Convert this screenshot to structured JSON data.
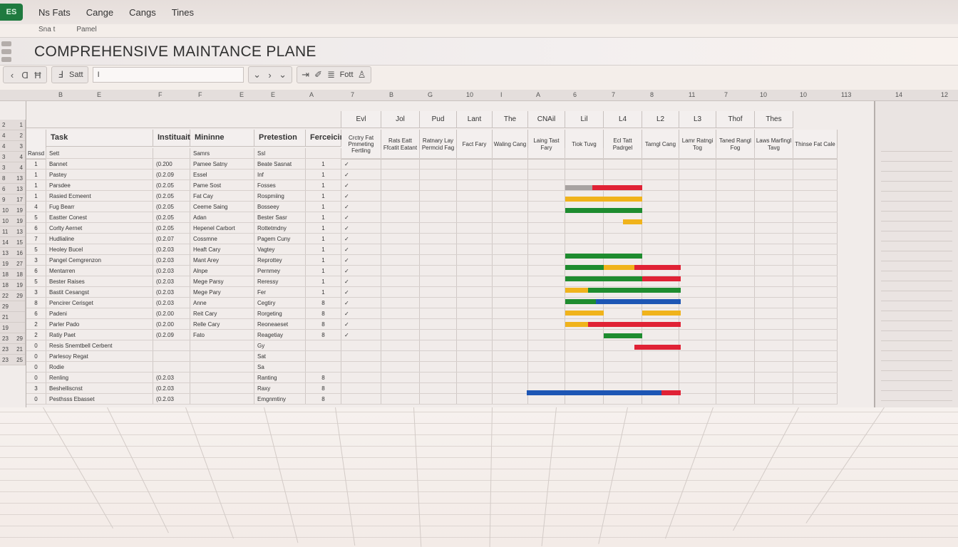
{
  "menubar": {
    "app_badge": "ES",
    "items": [
      "Ns Fats",
      "Cange",
      "Cangs",
      "Tines"
    ],
    "submenu": [
      "Sna t",
      "Pamel"
    ]
  },
  "title": "COMPREHENSIVE MAINTANCE PLANE",
  "toolbar": {
    "group1": [
      "‹",
      "Ɑ",
      "Ħ"
    ],
    "group2": [
      "Ⅎ",
      "Satt"
    ],
    "formula_value": "I",
    "group3": [
      "⇥",
      "✐",
      "≣",
      "Fott",
      "♙"
    ]
  },
  "column_letters": [
    "B",
    "E",
    "F",
    "F",
    "E",
    "E",
    "A",
    "7",
    "B",
    "G",
    "10",
    "I",
    "A",
    "6",
    "7",
    "8",
    "11",
    "7",
    "10",
    "10",
    "113",
    "14",
    "12"
  ],
  "header_top": [
    "Evl",
    "Jol",
    "Pud",
    "Lant",
    "The",
    "CNAil",
    "Lil",
    "L4",
    "L2",
    "L3",
    "Thof",
    "Thes"
  ],
  "header_main": {
    "task": "Task",
    "instructions": "Instituaitens",
    "minimum": "Mininne",
    "protection": "Pretestion",
    "frequency": "Ferceicing",
    "c1": "Crctry Fat Pmmeting Fertling",
    "c2": "Rats Eatt Ffcatit Eatant",
    "c3": "Ratnary Lay Permcid Fag",
    "c4": "Fact Fary",
    "c5": "Waling Cang",
    "c6": "Laing Tast Fary",
    "c7": "Tiok Tuvg",
    "c8": "Ecl Tatt Padrgel",
    "c9": "Tarngl Cang",
    "c10": "Lamr Ratngi Tog",
    "c11": "Taned Rangl Fog",
    "c12": "Laws Marfingl Tavg",
    "c13": "Thinse Fat Cale"
  },
  "row_numbers": [
    [
      "2",
      "1"
    ],
    [
      "4",
      "2"
    ],
    [
      "4",
      "3"
    ],
    [
      "3",
      "4"
    ],
    [
      "3",
      "4"
    ],
    [
      "8",
      "13"
    ],
    [
      "6",
      "13"
    ],
    [
      "9",
      "17"
    ],
    [
      "10",
      "19"
    ],
    [
      "10",
      "19"
    ],
    [
      "11",
      "13"
    ],
    [
      "14",
      "15"
    ],
    [
      "13",
      "16"
    ],
    [
      "19",
      "27"
    ],
    [
      "18",
      "18"
    ],
    [
      "18",
      "19"
    ],
    [
      "22",
      "29"
    ],
    [
      "29",
      ""
    ],
    [
      "21",
      ""
    ],
    [
      "19",
      ""
    ],
    [
      "23",
      "29"
    ],
    [
      "23",
      "21"
    ],
    [
      "23",
      "25"
    ]
  ],
  "rows": [
    {
      "n": "Ransd",
      "task": "Sett",
      "min": "",
      "prot": "Samrs",
      "freq": "Ssl",
      "c": "",
      "chk": ""
    },
    {
      "n": "1",
      "task": "Bannet",
      "min": "(0.200",
      "prot": "Pamee Satny",
      "freq": "Beate Sasnat",
      "c": "1",
      "chk": "✓"
    },
    {
      "n": "1",
      "task": "Pastey",
      "min": "(0.2.09",
      "prot": "Essel",
      "freq": "Inf",
      "c": "1",
      "chk": "✓"
    },
    {
      "n": "1",
      "task": "Parsdee",
      "min": "(0.2.05",
      "prot": "Pame Sost",
      "freq": "Fosses",
      "c": "1",
      "chk": "✓"
    },
    {
      "n": "1",
      "task": "Rasied Ecmeent",
      "min": "(0.2.05",
      "prot": "Fat Cay",
      "freq": "Rospmiing",
      "c": "1",
      "chk": "✓"
    },
    {
      "n": "4",
      "task": "Fug Bearr",
      "min": "(0.2.05",
      "prot": "Ceeme Saing",
      "freq": "Bosseey",
      "c": "1",
      "chk": "✓"
    },
    {
      "n": "5",
      "task": "Eastter Conest",
      "min": "(0.2.05",
      "prot": "Adan",
      "freq": "Bester Sasr",
      "c": "1",
      "chk": "✓"
    },
    {
      "n": "6",
      "task": "Corlty Aernet",
      "min": "(0.2.05",
      "prot": "Hepenel Carbort",
      "freq": "Rottetmdny",
      "c": "1",
      "chk": "✓"
    },
    {
      "n": "7",
      "task": "Hudlialine",
      "min": "(0.2.07",
      "prot": "Cossmne",
      "freq": "Pagem Cuny",
      "c": "1",
      "chk": "✓"
    },
    {
      "n": "5",
      "task": "Heoley Bucel",
      "min": "(0.2.03",
      "prot": "Heaft Cary",
      "freq": "Vagtey",
      "c": "1",
      "chk": "✓"
    },
    {
      "n": "3",
      "task": "Pangel Cemgrenzon",
      "min": "(0.2.03",
      "prot": "Mant Arey",
      "freq": "Reprottey",
      "c": "1",
      "chk": "✓"
    },
    {
      "n": "6",
      "task": "Mentarren",
      "min": "(0.2.03",
      "prot": "Alnpe",
      "freq": "Pernmey",
      "c": "1",
      "chk": "✓"
    },
    {
      "n": "5",
      "task": "Bester Raises",
      "min": "(0.2.03",
      "prot": "Mege Parsy",
      "freq": "Reressy",
      "c": "1",
      "chk": "✓"
    },
    {
      "n": "3",
      "task": "Bastit Cesangst",
      "min": "(0.2.03",
      "prot": "Mege Pary",
      "freq": "Fer",
      "c": "1",
      "chk": "✓"
    },
    {
      "n": "8",
      "task": "Pencirer Cerisget",
      "min": "(0.2.03",
      "prot": "Anne",
      "freq": "Cegtiry",
      "c": "8",
      "chk": "✓"
    },
    {
      "n": "6",
      "task": "Padeni",
      "min": "(0.2.00",
      "prot": "Reit Cary",
      "freq": "Rorgeting",
      "c": "8",
      "chk": "✓"
    },
    {
      "n": "2",
      "task": "Parler Pado",
      "min": "(0.2.00",
      "prot": "Relle Cary",
      "freq": "Reoneaeset",
      "c": "8",
      "chk": "✓"
    },
    {
      "n": "2",
      "task": "Ratiy Paet",
      "min": "(0.2.09",
      "prot": "Fato",
      "freq": "Reagetiay",
      "c": "8",
      "chk": "✓"
    },
    {
      "n": "0",
      "task": "Resis Snemtbell Cerbent",
      "min": "",
      "prot": "",
      "freq": "Gy",
      "c": "",
      "chk": ""
    },
    {
      "n": "0",
      "task": "Parlesoy Regat",
      "min": "",
      "prot": "",
      "freq": "Sat",
      "c": "",
      "chk": ""
    },
    {
      "n": "0",
      "task": "Rodie",
      "min": "",
      "prot": "",
      "freq": "Sa",
      "c": "",
      "chk": ""
    },
    {
      "n": "0",
      "task": "Renling",
      "min": "(0.2.03",
      "prot": "",
      "freq": "Ranting",
      "c": "8",
      "chk": ""
    },
    {
      "n": "3",
      "task": "Beshelliscnst",
      "min": "(0.2.03",
      "prot": "",
      "freq": "Raxy",
      "c": "8",
      "chk": ""
    },
    {
      "n": "0",
      "task": "Pesthsss Ebasset",
      "min": "(0.2.03",
      "prot": "",
      "freq": "Emgnmtiny",
      "c": "8",
      "chk": ""
    }
  ],
  "gantt_colors": {
    "green": "#1e8c2f",
    "red": "#e02235",
    "yellow": "#f0b31b",
    "blue": "#1d56b4",
    "gray": "#a8a3a1"
  },
  "gantt_bars": [
    {
      "row": 3,
      "start": 0,
      "end": 0.7,
      "color": "gray"
    },
    {
      "row": 3,
      "start": 0.7,
      "end": 2.0,
      "color": "red"
    },
    {
      "row": 4,
      "start": 0,
      "end": 2.0,
      "color": "yellow"
    },
    {
      "row": 5,
      "start": 0,
      "end": 2.0,
      "color": "green"
    },
    {
      "row": 6,
      "start": 1.5,
      "end": 2.0,
      "color": "yellow"
    },
    {
      "row": 9,
      "start": 0,
      "end": 2.0,
      "color": "green"
    },
    {
      "row": 10,
      "start": 0,
      "end": 1.0,
      "color": "green"
    },
    {
      "row": 10,
      "start": 1.0,
      "end": 1.8,
      "color": "yellow"
    },
    {
      "row": 10,
      "start": 1.8,
      "end": 3.0,
      "color": "red"
    },
    {
      "row": 11,
      "start": 0,
      "end": 2.0,
      "color": "green"
    },
    {
      "row": 11,
      "start": 2.0,
      "end": 3.0,
      "color": "red"
    },
    {
      "row": 12,
      "start": 0,
      "end": 0.6,
      "color": "yellow"
    },
    {
      "row": 12,
      "start": 0.6,
      "end": 3.0,
      "color": "green"
    },
    {
      "row": 13,
      "start": 0,
      "end": 0.8,
      "color": "green"
    },
    {
      "row": 13,
      "start": 0.8,
      "end": 3.0,
      "color": "blue"
    },
    {
      "row": 14,
      "start": 0,
      "end": 1.0,
      "color": "yellow"
    },
    {
      "row": 14,
      "start": 2.0,
      "end": 3.0,
      "color": "yellow"
    },
    {
      "row": 15,
      "start": 0,
      "end": 0.6,
      "color": "yellow"
    },
    {
      "row": 15,
      "start": 0.6,
      "end": 3.0,
      "color": "red"
    },
    {
      "row": 16,
      "start": 1.0,
      "end": 2.0,
      "color": "green"
    },
    {
      "row": 17,
      "start": 1.8,
      "end": 3.0,
      "color": "red"
    },
    {
      "row": 21,
      "start": -1.0,
      "end": 2.5,
      "color": "blue"
    },
    {
      "row": 21,
      "start": 2.5,
      "end": 3.0,
      "color": "red"
    }
  ]
}
